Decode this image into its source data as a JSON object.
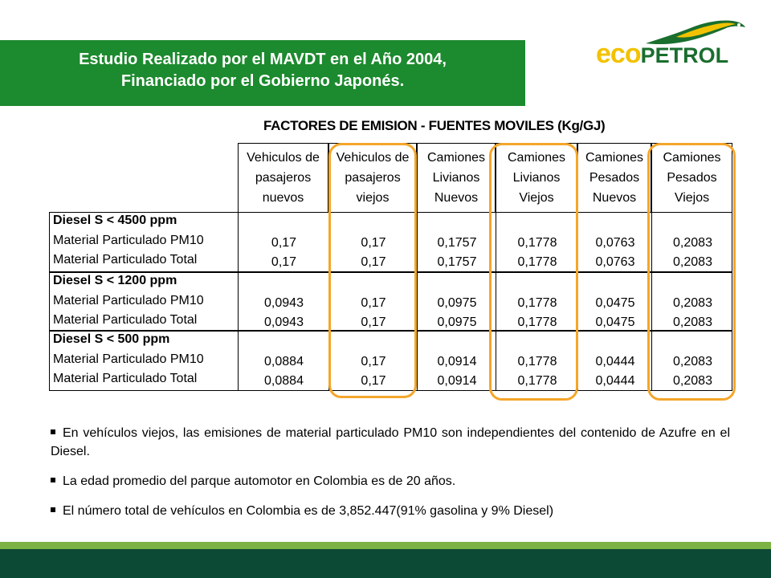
{
  "header": {
    "title_line1": "Estudio Realizado por el MAVDT en el Año 2004,",
    "title_line2": "Financiado por el Gobierno Japonés."
  },
  "logo": {
    "eco": "eco",
    "petrol": "PETROL",
    "brand_green": "#1a6e2e",
    "brand_yellow": "#f2c200"
  },
  "table": {
    "title": "FACTORES DE EMISION - FUENTES MOVILES (Kg/GJ)",
    "columns": [
      [
        "Vehiculos de",
        "pasajeros",
        "nuevos"
      ],
      [
        "Vehiculos de",
        "pasajeros",
        "viejos"
      ],
      [
        "Camiones",
        "Livianos",
        "Nuevos"
      ],
      [
        "Camiones",
        "Livianos",
        "Viejos"
      ],
      [
        "Camiones",
        "Pesados",
        "Nuevos"
      ],
      [
        "Camiones",
        "Pesados",
        "Viejos"
      ]
    ],
    "groups": [
      {
        "name": "Diesel S < 4500 ppm",
        "rows": [
          {
            "label": "Material Particulado PM10",
            "values": [
              "0,17",
              "0,17",
              "0,1757",
              "0,1778",
              "0,0763",
              "0,2083"
            ]
          },
          {
            "label": "Material Particulado Total",
            "values": [
              "0,17",
              "0,17",
              "0,1757",
              "0,1778",
              "0,0763",
              "0,2083"
            ]
          }
        ]
      },
      {
        "name": "Diesel S < 1200 ppm",
        "rows": [
          {
            "label": "Material Particulado PM10",
            "values": [
              "0,0943",
              "0,17",
              "0,0975",
              "0,1778",
              "0,0475",
              "0,2083"
            ]
          },
          {
            "label": "Material Particulado Total",
            "values": [
              "0,0943",
              "0,17",
              "0,0975",
              "0,1778",
              "0,0475",
              "0,2083"
            ]
          }
        ]
      },
      {
        "name": "Diesel S < 500 ppm",
        "rows": [
          {
            "label": "Material Particulado PM10",
            "values": [
              "0,0884",
              "0,17",
              "0,0914",
              "0,1778",
              "0,0444",
              "0,2083"
            ]
          },
          {
            "label": "Material Particulado Total",
            "values": [
              "0,0884",
              "0,17",
              "0,0914",
              "0,1778",
              "0,0444",
              "0,2083"
            ]
          }
        ]
      }
    ],
    "highlight_color": "#f4a62a"
  },
  "bullets": [
    "En vehículos viejos, las emisiones de material particulado PM10 son independientes del contenido de Azufre en el Diesel.",
    "La edad promedio del parque automotor en Colombia es de 20 años.",
    "El número total de vehículos en Colombia es de 3,852.447(91% gasolina y 9% Diesel)"
  ]
}
